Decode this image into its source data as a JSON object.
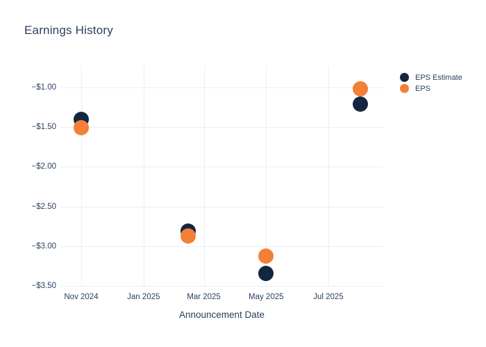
{
  "page": {
    "background": "#ffffff",
    "text_color": "#2a3f5f",
    "grid_color": "#e9eef7"
  },
  "chart_data": {
    "type": "scatter",
    "title": "Earnings History",
    "xlabel": "Announcement Date",
    "ylabel": "",
    "grid": true,
    "legend_position": "right-top-outside",
    "x": [
      "2024-11-01",
      "2025-02-14",
      "2025-05-01",
      "2025-08-01"
    ],
    "series": [
      {
        "name": "EPS Estimate",
        "color": "#13263f",
        "values": [
          -1.4,
          -2.81,
          -3.34,
          -1.21
        ]
      },
      {
        "name": "EPS",
        "color": "#f28036",
        "values": [
          -1.51,
          -2.87,
          -3.12,
          -1.02
        ]
      }
    ],
    "ylim": [
      -3.51,
      -0.73
    ],
    "yticks": [
      {
        "label": "−$1.00",
        "value": -1.0
      },
      {
        "label": "−$1.50",
        "value": -1.5
      },
      {
        "label": "−$2.00",
        "value": -2.0
      },
      {
        "label": "−$2.50",
        "value": -2.5
      },
      {
        "label": "−$3.00",
        "value": -3.0
      },
      {
        "label": "−$3.50",
        "value": -3.5
      }
    ],
    "xticks": [
      {
        "label": "Nov 2024",
        "date": "2024-11-01"
      },
      {
        "label": "Jan 2025",
        "date": "2025-01-01"
      },
      {
        "label": "Mar 2025",
        "date": "2025-03-01"
      },
      {
        "label": "May 2025",
        "date": "2025-05-01"
      },
      {
        "label": "Jul 2025",
        "date": "2025-07-01"
      }
    ]
  }
}
